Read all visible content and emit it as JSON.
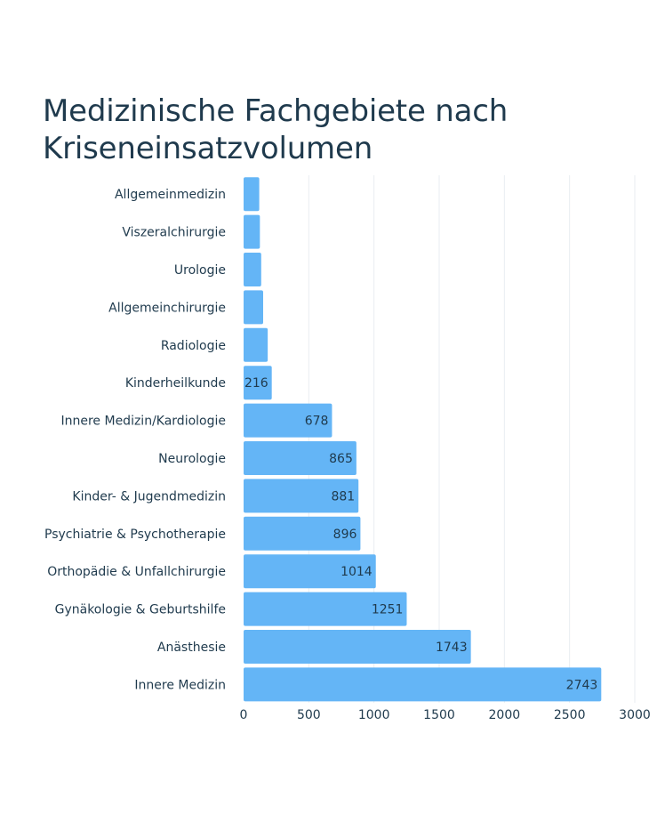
{
  "chart_data": {
    "type": "bar",
    "orientation": "horizontal",
    "title": "Medizinische Fachgebiete nach Kriseneinsatzvolumen",
    "xlabel": "",
    "ylabel": "",
    "xlim": [
      0,
      3000
    ],
    "ticks": [
      0,
      500,
      1000,
      1500,
      2000,
      2500,
      3000
    ],
    "tick_labels": [
      "0",
      "500",
      "1000",
      "1500",
      "2000",
      "2500",
      "3000"
    ],
    "grid": true,
    "bar_color": "#64b5f6",
    "categories": [
      "Allgemeinmedizin",
      "Viszeralchirurgie",
      "Urologie",
      "Allgemeinchirurgie",
      "Radiologie",
      "Kinderheilkunde",
      "Innere Medizin/Kardiologie",
      "Neurologie",
      "Kinder- & Jugendmedizin",
      "Psychiatrie & Psychotherapie",
      "Orthopädie & Unfallchirurgie",
      "Gynäkologie & Geburtshilfe",
      "Anästhesie",
      "Innere Medizin"
    ],
    "values": [
      120,
      125,
      135,
      150,
      185,
      216,
      678,
      865,
      881,
      896,
      1014,
      1251,
      1743,
      2743
    ],
    "data_labels": [
      "",
      "",
      "",
      "",
      "",
      "216",
      "678",
      "865",
      "881",
      "896",
      "1014",
      "1251",
      "1743",
      "2743"
    ]
  }
}
